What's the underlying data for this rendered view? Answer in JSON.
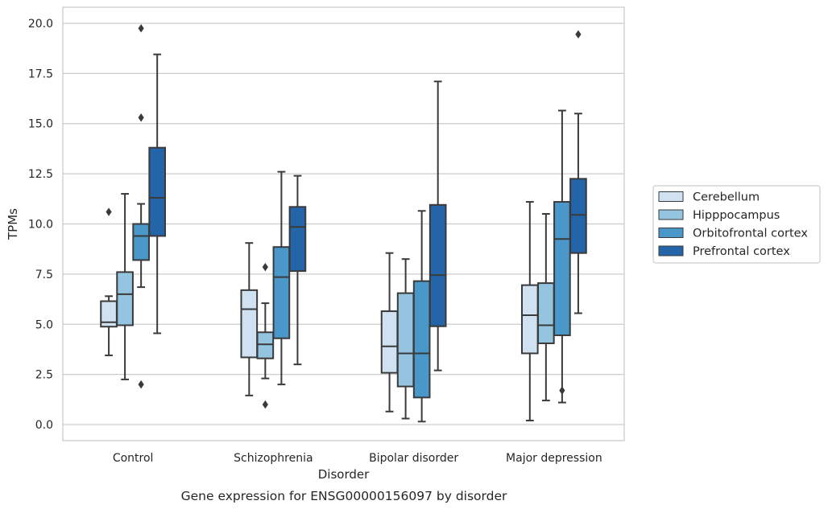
{
  "chart_data": {
    "type": "boxplot",
    "caption": "Gene expression for ENSG00000156097 by disorder",
    "xlabel": "Disorder",
    "ylabel": "TPMs",
    "ylim": [
      -0.8,
      20.8
    ],
    "yticks": [
      "0.0",
      "2.5",
      "5.0",
      "7.5",
      "10.0",
      "12.5",
      "15.0",
      "17.5",
      "20.0"
    ],
    "categories": [
      "Control",
      "Schizophrenia",
      "Bipolar disorder",
      "Major depression"
    ],
    "grid": "horizontal",
    "legend_position": "right",
    "series": [
      {
        "name": "Cerebellum",
        "color": "#d0e1f2",
        "boxes": [
          {
            "whislo": 3.45,
            "q1": 4.88,
            "med": 5.1,
            "q3": 6.15,
            "whishi": 6.4,
            "fliers": [
              10.6
            ]
          },
          {
            "whislo": 1.45,
            "q1": 3.35,
            "med": 5.75,
            "q3": 6.7,
            "whishi": 9.05,
            "fliers": []
          },
          {
            "whislo": 0.65,
            "q1": 2.58,
            "med": 3.9,
            "q3": 5.65,
            "whishi": 8.55,
            "fliers": []
          },
          {
            "whislo": 0.2,
            "q1": 3.55,
            "med": 5.45,
            "q3": 6.95,
            "whishi": 11.1,
            "fliers": []
          }
        ]
      },
      {
        "name": "Hipppocampus",
        "color": "#94c4df",
        "boxes": [
          {
            "whislo": 2.25,
            "q1": 4.95,
            "med": 6.5,
            "q3": 7.6,
            "whishi": 11.5,
            "fliers": []
          },
          {
            "whislo": 2.3,
            "q1": 3.3,
            "med": 4.0,
            "q3": 4.6,
            "whishi": 6.05,
            "fliers": [
              7.85,
              1.0
            ]
          },
          {
            "whislo": 0.3,
            "q1": 1.9,
            "med": 3.55,
            "q3": 6.55,
            "whishi": 8.25,
            "fliers": []
          },
          {
            "whislo": 1.2,
            "q1": 4.05,
            "med": 4.95,
            "q3": 7.05,
            "whishi": 10.5,
            "fliers": []
          }
        ]
      },
      {
        "name": "Orbitofrontal cortex",
        "color": "#4a98c9",
        "boxes": [
          {
            "whislo": 6.85,
            "q1": 8.2,
            "med": 9.4,
            "q3": 10.0,
            "whishi": 11.0,
            "fliers": [
              15.3,
              19.75,
              2.0
            ]
          },
          {
            "whislo": 2.0,
            "q1": 4.3,
            "med": 7.35,
            "q3": 8.85,
            "whishi": 12.6,
            "fliers": []
          },
          {
            "whislo": 0.15,
            "q1": 1.35,
            "med": 3.55,
            "q3": 7.15,
            "whishi": 10.65,
            "fliers": []
          },
          {
            "whislo": 1.1,
            "q1": 4.45,
            "med": 9.25,
            "q3": 11.1,
            "whishi": 15.65,
            "fliers": [
              1.7
            ]
          }
        ]
      },
      {
        "name": "Prefrontal cortex",
        "color": "#2464a8",
        "boxes": [
          {
            "whislo": 4.55,
            "q1": 9.4,
            "med": 11.3,
            "q3": 13.8,
            "whishi": 18.45,
            "fliers": []
          },
          {
            "whislo": 3.0,
            "q1": 7.65,
            "med": 9.85,
            "q3": 10.85,
            "whishi": 12.4,
            "fliers": []
          },
          {
            "whislo": 2.7,
            "q1": 4.9,
            "med": 7.45,
            "q3": 10.95,
            "whishi": 17.1,
            "fliers": []
          },
          {
            "whislo": 5.55,
            "q1": 8.55,
            "med": 10.45,
            "q3": 12.25,
            "whishi": 15.5,
            "fliers": [
              19.45
            ]
          }
        ]
      }
    ]
  }
}
